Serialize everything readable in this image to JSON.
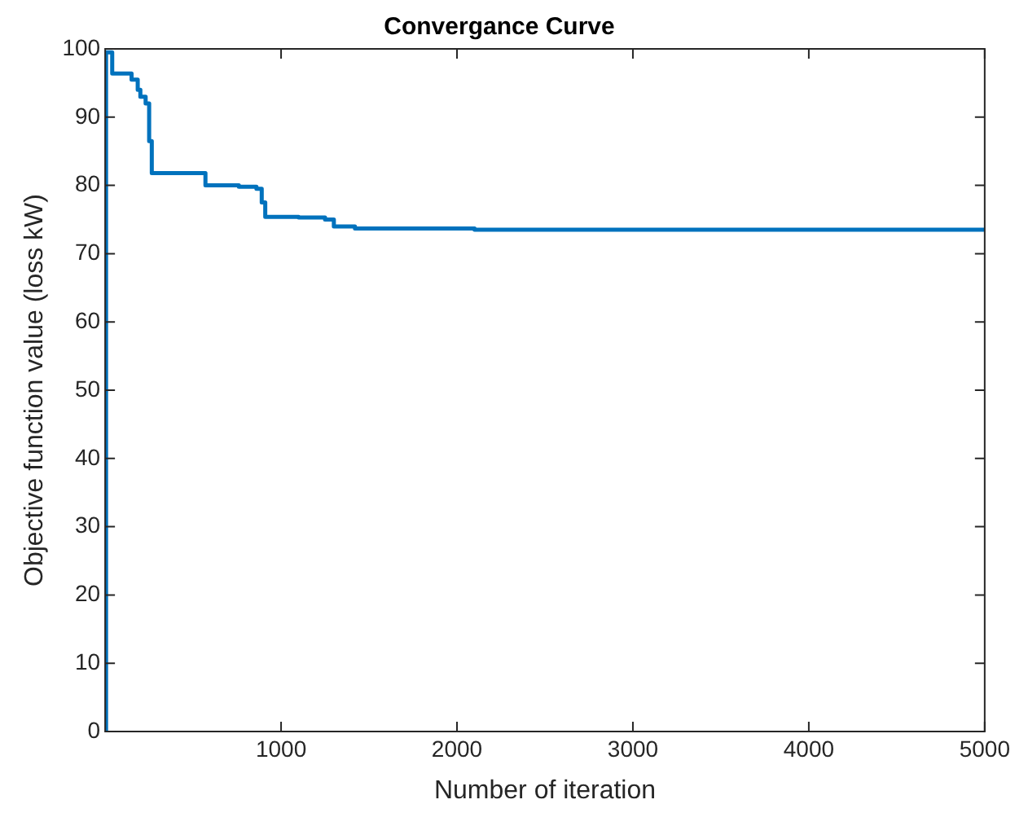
{
  "chart_data": {
    "type": "step",
    "title": "Convergance Curve",
    "xlabel": "Number of iteration",
    "ylabel": "Objective function value (loss kW)",
    "series": [
      {
        "color": "#0072bd",
        "x": [
          0,
          5,
          40,
          150,
          185,
          200,
          230,
          250,
          265,
          570,
          760,
          860,
          890,
          910,
          1100,
          1250,
          1300,
          1420,
          2100,
          5000
        ],
        "values": [
          0,
          99.5,
          96.4,
          95.5,
          94,
          93,
          92,
          86.5,
          81.8,
          80,
          79.8,
          79.5,
          77.5,
          75.4,
          75.3,
          75,
          74,
          73.7,
          73.5,
          73.5
        ]
      }
    ],
    "xlim": [
      0,
      5000
    ],
    "xticks": [
      1000,
      2000,
      3000,
      4000,
      5000
    ],
    "ylim": [
      0,
      100
    ],
    "yticks": [
      0,
      10,
      20,
      30,
      40,
      50,
      60,
      70,
      80,
      90,
      100
    ],
    "grid": false,
    "legend": false
  }
}
